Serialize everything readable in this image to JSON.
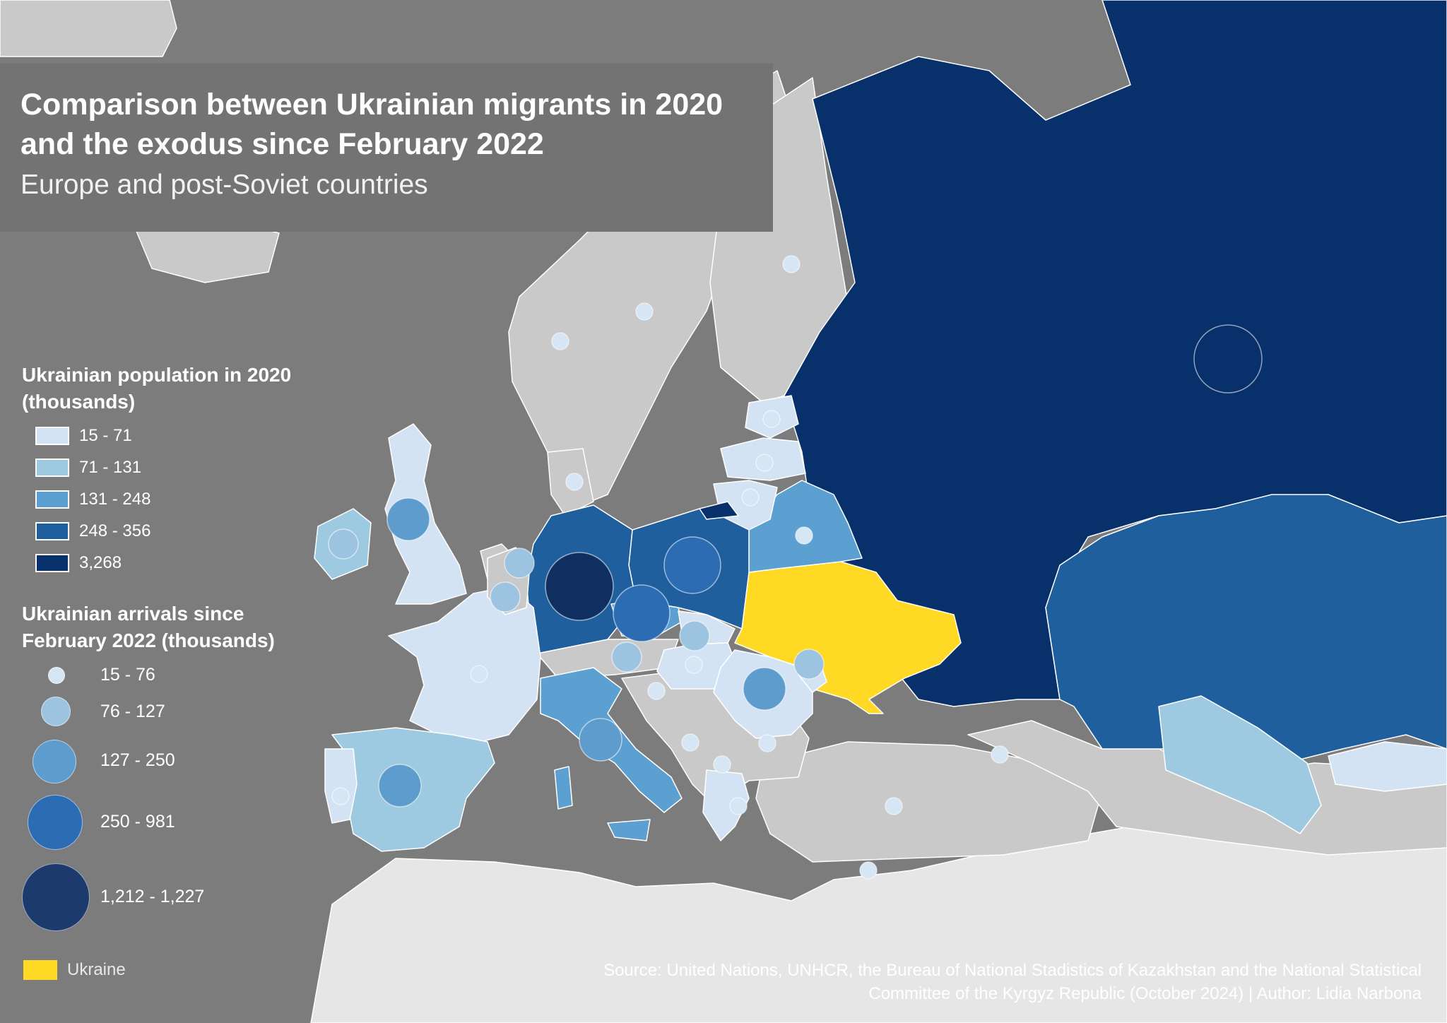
{
  "title": "Comparison between Ukrainian migrants in 2020 and the exodus since February 2022",
  "subtitle": "Europe and post-Soviet countries",
  "colors": {
    "sea": "#7c7c7c",
    "no_data_land": "#c9c9c9",
    "africa_land": "#e6e6e6",
    "ukraine": "#ffd923",
    "class1": "#d3e3f3",
    "class2": "#9ecae1",
    "class3": "#5c9fd1",
    "class4": "#1f5f9e",
    "class5": "#08306b"
  },
  "legend_population": {
    "heading": "Ukrainian population in 2020 (thousands)",
    "items": [
      {
        "label": "15 - 71",
        "color": "#d3e3f3"
      },
      {
        "label": "71 - 131",
        "color": "#9ecae1"
      },
      {
        "label": "131 - 248",
        "color": "#5c9fd1"
      },
      {
        "label": "248 - 356",
        "color": "#1f5f9e"
      },
      {
        "label": "3,268",
        "color": "#08306b"
      }
    ]
  },
  "legend_arrivals": {
    "heading": "Ukrainian arrivals since February 2022 (thousands)",
    "items": [
      {
        "label": "15 - 76",
        "color": "#d6e6f4"
      },
      {
        "label": "76 - 127",
        "color": "#9cc4e0"
      },
      {
        "label": "127 - 250",
        "color": "#5e9ccd"
      },
      {
        "label": "250 - 981",
        "color": "#2b6cb3"
      },
      {
        "label": "1,212 - 1,227",
        "color": "#1c3a6b"
      }
    ]
  },
  "ukraine_key": "Ukraine",
  "source": {
    "line1": "Source: United Nations, UNHCR, the Bureau of National Stadistics of Kazakhstan and the National Statistical",
    "line2": "Committee of the Kyrgyz Republic (October 2024) | Author: Lidia Narbona"
  },
  "map_data": {
    "countries": [
      {
        "name": "Russia",
        "class": 5
      },
      {
        "name": "Kazakhstan",
        "class": 4
      },
      {
        "name": "Germany",
        "class": 4
      },
      {
        "name": "Poland",
        "class": 4
      },
      {
        "name": "Belarus",
        "class": 3
      },
      {
        "name": "Italy",
        "class": 3
      },
      {
        "name": "Czechia",
        "class": 3
      },
      {
        "name": "Spain",
        "class": 2
      },
      {
        "name": "Uzbekistan",
        "class": 2
      },
      {
        "name": "Ireland",
        "class": 2
      },
      {
        "name": "United Kingdom",
        "class": 1
      },
      {
        "name": "France",
        "class": 1
      },
      {
        "name": "Portugal",
        "class": 1
      },
      {
        "name": "Latvia",
        "class": 1
      },
      {
        "name": "Lithuania",
        "class": 1
      },
      {
        "name": "Estonia",
        "class": 1
      },
      {
        "name": "Romania",
        "class": 1
      },
      {
        "name": "Hungary",
        "class": 1
      },
      {
        "name": "Slovakia",
        "class": 1
      },
      {
        "name": "Moldova",
        "class": 1
      },
      {
        "name": "Greece",
        "class": 1
      },
      {
        "name": "Kyrgyzstan",
        "class": 1
      },
      {
        "name": "Ukraine",
        "class": "ukraine"
      }
    ],
    "arrivals": [
      {
        "name": "Germany",
        "class": 5
      },
      {
        "name": "Poland",
        "class": 4
      },
      {
        "name": "Czechia",
        "class": 4
      },
      {
        "name": "United Kingdom",
        "class": 3
      },
      {
        "name": "Spain",
        "class": 3
      },
      {
        "name": "Italy",
        "class": 3
      },
      {
        "name": "Romania",
        "class": 3
      },
      {
        "name": "Russia",
        "class": 5
      },
      {
        "name": "Ireland",
        "class": 2
      },
      {
        "name": "Netherlands",
        "class": 2
      },
      {
        "name": "Belgium",
        "class": 2
      },
      {
        "name": "Austria",
        "class": 2
      },
      {
        "name": "Slovakia",
        "class": 2
      },
      {
        "name": "Moldova",
        "class": 2
      },
      {
        "name": "Switzerland",
        "class": 2
      },
      {
        "name": "Belarus",
        "class": 1
      },
      {
        "name": "France",
        "class": 1
      },
      {
        "name": "Portugal",
        "class": 1
      },
      {
        "name": "Sweden",
        "class": 1
      },
      {
        "name": "Norway",
        "class": 1
      },
      {
        "name": "Finland",
        "class": 1
      },
      {
        "name": "Denmark",
        "class": 1
      },
      {
        "name": "Lithuania",
        "class": 1
      },
      {
        "name": "Latvia",
        "class": 1
      },
      {
        "name": "Estonia",
        "class": 1
      },
      {
        "name": "Hungary",
        "class": 1
      },
      {
        "name": "Bulgaria",
        "class": 1
      },
      {
        "name": "Greece",
        "class": 1
      },
      {
        "name": "Turkey",
        "class": 1
      },
      {
        "name": "Georgia",
        "class": 1
      },
      {
        "name": "Cyprus",
        "class": 1
      },
      {
        "name": "Croatia",
        "class": 1
      },
      {
        "name": "Serbia",
        "class": 1
      },
      {
        "name": "North Macedonia",
        "class": 1
      }
    ]
  }
}
